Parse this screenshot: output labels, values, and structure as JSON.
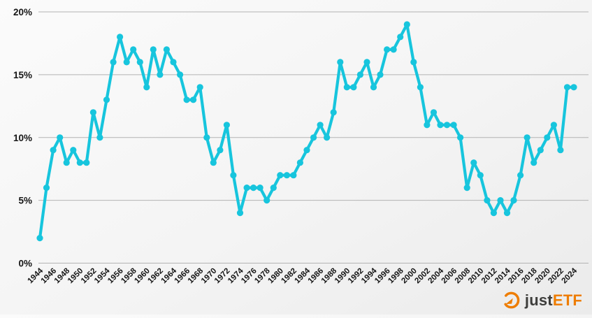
{
  "chart_data": {
    "type": "line",
    "title": "",
    "xlabel": "",
    "ylabel": "",
    "x": [
      1944,
      1945,
      1946,
      1947,
      1948,
      1949,
      1950,
      1951,
      1952,
      1953,
      1954,
      1955,
      1956,
      1957,
      1958,
      1959,
      1960,
      1961,
      1962,
      1963,
      1964,
      1965,
      1966,
      1967,
      1968,
      1969,
      1970,
      1971,
      1972,
      1973,
      1974,
      1975,
      1976,
      1977,
      1978,
      1979,
      1980,
      1981,
      1982,
      1983,
      1984,
      1985,
      1986,
      1987,
      1988,
      1989,
      1990,
      1991,
      1992,
      1993,
      1994,
      1995,
      1996,
      1997,
      1998,
      1999,
      2000,
      2001,
      2002,
      2003,
      2004,
      2005,
      2006,
      2007,
      2008,
      2009,
      2010,
      2011,
      2012,
      2013,
      2014,
      2015,
      2016,
      2017,
      2018,
      2019,
      2020,
      2021,
      2022,
      2023,
      2024
    ],
    "values": [
      2,
      6,
      9,
      10,
      8,
      9,
      8,
      8,
      12,
      10,
      13,
      16,
      18,
      16,
      17,
      16,
      14,
      17,
      15,
      17,
      16,
      15,
      13,
      13,
      14,
      10,
      8,
      9,
      11,
      7,
      4,
      6,
      6,
      6,
      5,
      6,
      7,
      7,
      7,
      8,
      9,
      10,
      11,
      10,
      12,
      16,
      14,
      14,
      15,
      16,
      14,
      15,
      17,
      17,
      18,
      19,
      16,
      14,
      11,
      12,
      11,
      11,
      11,
      10,
      6,
      8,
      7,
      5,
      4,
      5,
      4,
      5,
      7,
      10,
      8,
      9,
      10,
      11,
      9,
      14,
      14
    ],
    "unit": "%",
    "ylim": [
      0,
      20
    ],
    "y_ticks": {
      "values": [
        0,
        5,
        10,
        15,
        20
      ],
      "labels": [
        "0%",
        "5%",
        "10%",
        "15%",
        "20%"
      ]
    },
    "x_tick_every": 2,
    "grid": true,
    "legend": "none",
    "line_color": "#17c5dd",
    "gridline_color": "#b3b3b3",
    "tick_label_color": "#161616"
  },
  "logo": {
    "name": "justETF",
    "text_dark": "just",
    "text_accent": "ETF",
    "accent_color": "#ee7d00",
    "dark_color": "#3d3d3b",
    "icon": "gauge-arrow-icon"
  }
}
